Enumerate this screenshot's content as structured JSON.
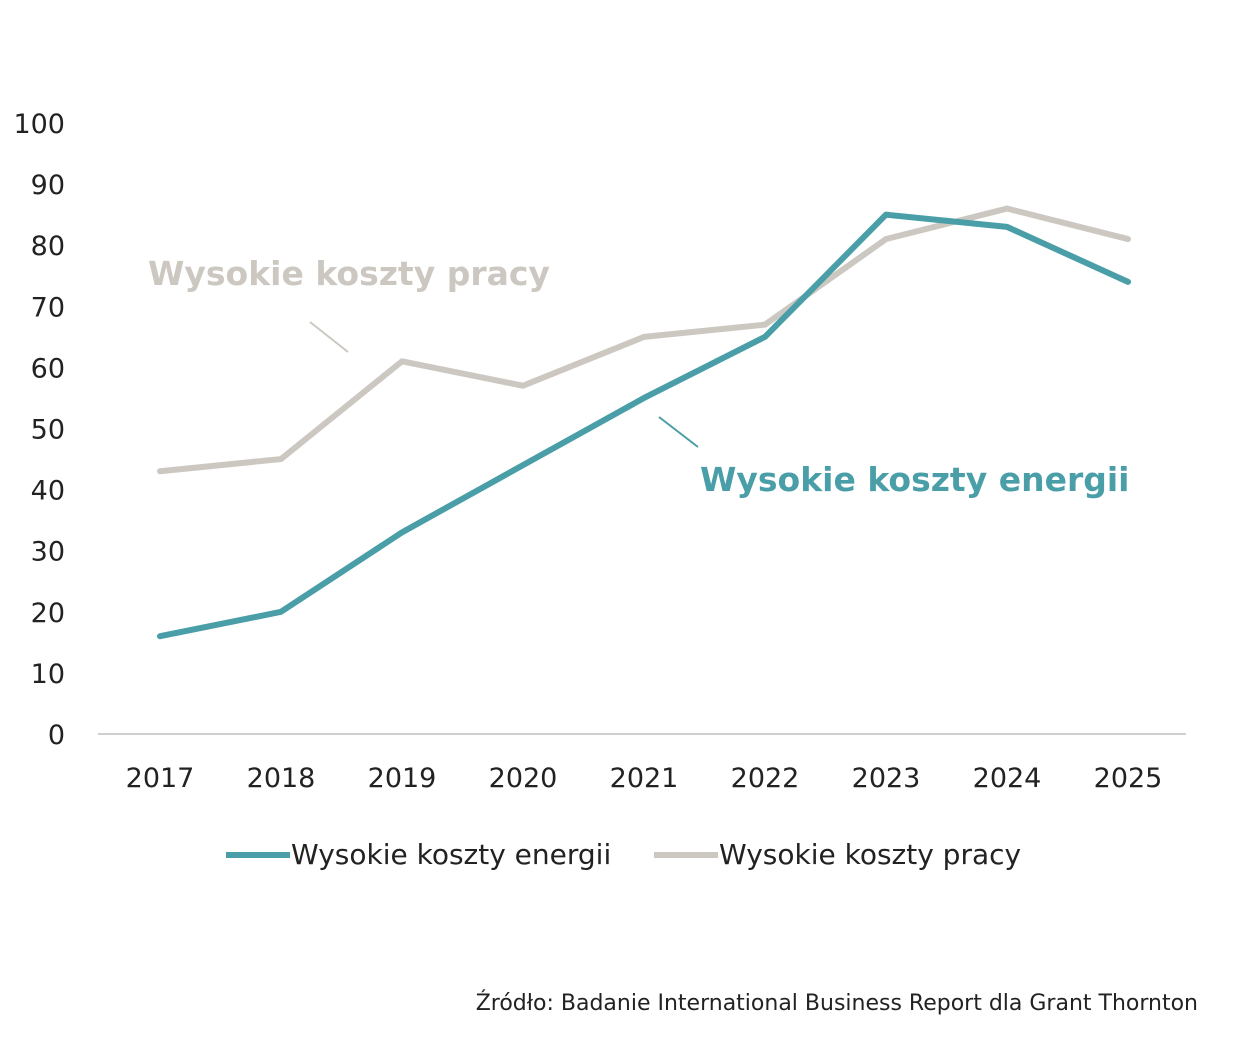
{
  "chart_data": {
    "type": "line",
    "x": [
      "2017",
      "2018",
      "2019",
      "2020",
      "2021",
      "2022",
      "2023",
      "2024",
      "2025"
    ],
    "y_ticks": [
      "0",
      "10",
      "20",
      "30",
      "40",
      "50",
      "60",
      "70",
      "80",
      "90",
      "100"
    ],
    "ylim": [
      0,
      100
    ],
    "grid": false,
    "legend_placement": "bottom-center",
    "series": [
      {
        "name": "Wysokie koszty energii",
        "color": "#4a9ea7",
        "values": [
          16,
          20,
          33,
          44,
          55,
          65,
          85,
          83,
          74
        ]
      },
      {
        "name": "Wysokie koszty pracy",
        "color": "#ccc8c1",
        "values": [
          43,
          45,
          61,
          57,
          65,
          67,
          81,
          86,
          81
        ]
      }
    ],
    "annotations": [
      {
        "text": "Wysokie koszty pracy",
        "series": 1
      },
      {
        "text": "Wysokie koszty energii",
        "series": 0
      }
    ]
  },
  "source": "Źródło:  Badanie International Business Report dla Grant Thornton"
}
